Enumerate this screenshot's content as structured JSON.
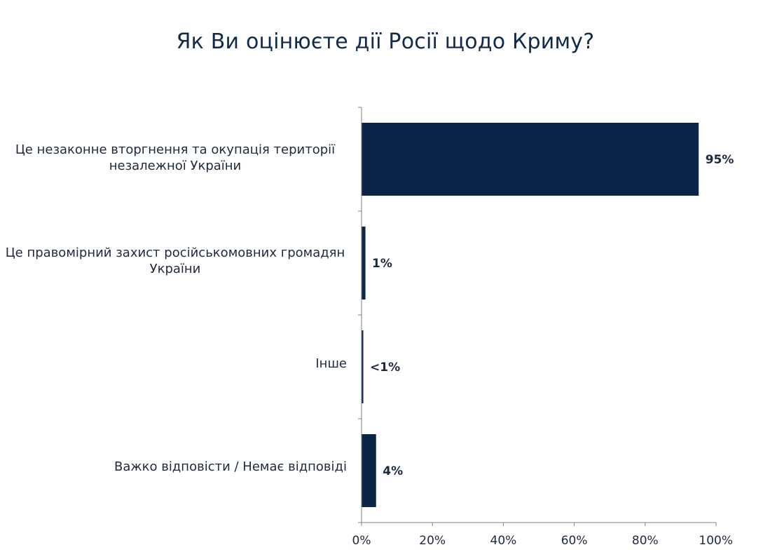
{
  "chart_data": {
    "type": "bar",
    "orientation": "horizontal",
    "title": "Як Ви оцінюєте дії Росії щодо Криму?",
    "categories": [
      "Це незаконне вторгнення та окупація території незалежної України",
      "Це правомірний захист російськомовних громадян України",
      "Інше",
      "Важко відповісти / Немає відповіді"
    ],
    "values": [
      95,
      1,
      0.3,
      4
    ],
    "data_labels": [
      "95%",
      "1%",
      "<1%",
      "4%"
    ],
    "xlim": [
      0,
      100
    ],
    "x_ticks": [
      "0%",
      "20%",
      "40%",
      "60%",
      "80%",
      "100%"
    ],
    "grid": false,
    "legend": "none",
    "bar_color": "#0b2548",
    "text_color": "#1d2a3e"
  }
}
